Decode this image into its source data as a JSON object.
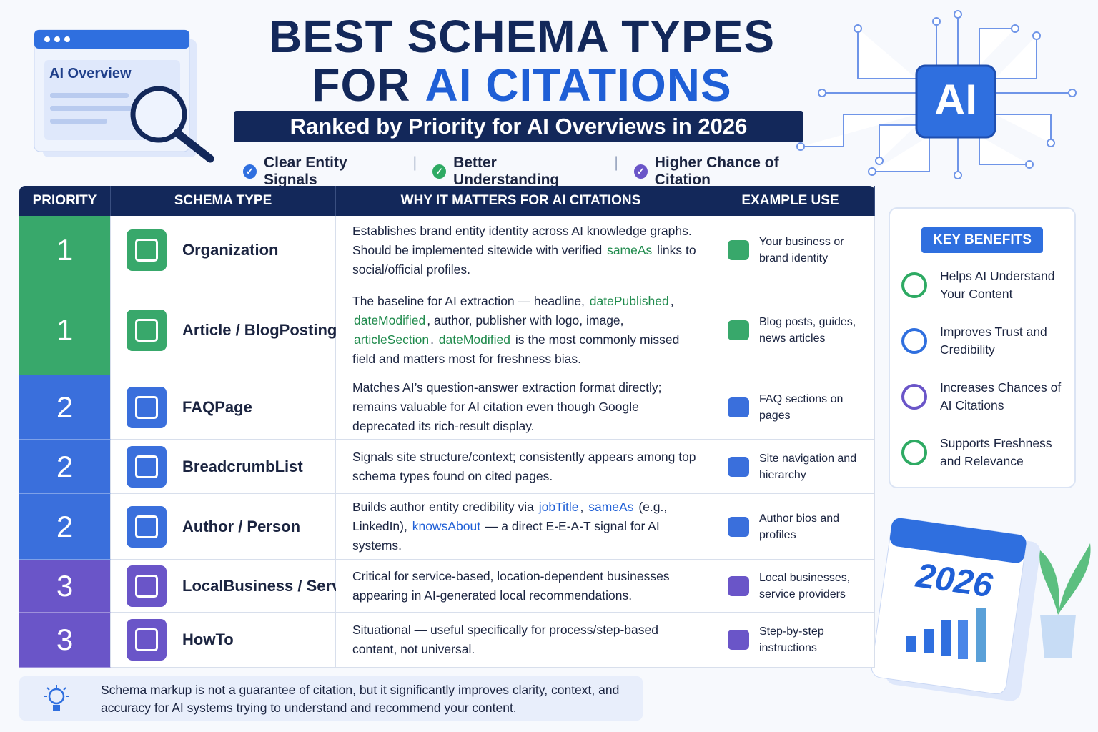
{
  "header": {
    "title_line1": "BEST SCHEMA TYPES",
    "title_line2_a": "FOR",
    "title_line2_b": "AI CITATIONS",
    "subtitle": "Ranked by Priority for AI Overviews in 2026",
    "checks": [
      {
        "text": "Clear Entity Signals",
        "color": "#2f6fdf"
      },
      {
        "text": "Better Understanding",
        "color": "#2eaa63"
      },
      {
        "text": "Higher Chance of Citation",
        "color": "#6a55c8"
      }
    ]
  },
  "decor": {
    "browser_label": "AI Overview",
    "chip_label": "AI",
    "calendar_year": "2026"
  },
  "table": {
    "headers": [
      "PRIORITY",
      "SCHEMA TYPE",
      "WHY IT MATTERS FOR AI CITATIONS",
      "EXAMPLE USE"
    ],
    "rows": [
      {
        "priority": 1,
        "color": "#38a86b",
        "schema": "Organization",
        "why": [
          {
            "text": "Establishes brand entity identity across AI knowledge graphs. Should be implemented sitewide with verified "
          },
          {
            "text": "sameAs",
            "color": "#1f8a4c"
          },
          {
            "text": " links to social/official profiles."
          }
        ],
        "example": "Your business or brand identity"
      },
      {
        "priority": 1,
        "color": "#38a86b",
        "schema": "Article / BlogPosting",
        "why": [
          {
            "text": "The baseline for AI extraction — headline, "
          },
          {
            "text": "datePublished",
            "color": "#1f8a4c"
          },
          {
            "text": ", "
          },
          {
            "text": "dateModified",
            "color": "#1f8a4c"
          },
          {
            "text": ", author, publisher with logo, image, "
          },
          {
            "text": "articleSection",
            "color": "#1f8a4c"
          },
          {
            "text": ". "
          },
          {
            "text": "dateModified",
            "color": "#1f8a4c"
          },
          {
            "text": " is the most commonly missed field and matters most for freshness bias."
          }
        ],
        "example": "Blog posts, guides, news articles"
      },
      {
        "priority": 2,
        "color": "#3a6fdc",
        "schema": "FAQPage",
        "why": [
          {
            "text": "Matches AI’s question-answer extraction format directly; remains valuable for AI citation even though Google deprecated its rich-result display."
          }
        ],
        "example": "FAQ sections on pages"
      },
      {
        "priority": 2,
        "color": "#3a6fdc",
        "schema": "BreadcrumbList",
        "why": [
          {
            "text": "Signals site structure/context; consistently appears among top schema types found on cited pages."
          }
        ],
        "example": "Site navigation and hierarchy"
      },
      {
        "priority": 2,
        "color": "#3a6fdc",
        "schema": "Author / Person",
        "why": [
          {
            "text": "Builds author entity credibility via "
          },
          {
            "text": "jobTitle",
            "color": "#1f5fd6"
          },
          {
            "text": ", "
          },
          {
            "text": "sameAs",
            "color": "#1f5fd6"
          },
          {
            "text": " (e.g., LinkedIn), "
          },
          {
            "text": "knowsAbout",
            "color": "#1f5fd6"
          },
          {
            "text": " — a direct E-E-A-T signal for AI systems."
          }
        ],
        "example": "Author bios and profiles"
      },
      {
        "priority": 3,
        "color": "#6a55c8",
        "schema": "LocalBusiness / Service",
        "why": [
          {
            "text": "Critical for service-based, location-dependent businesses appearing in AI-generated local recommendations."
          }
        ],
        "example": "Local businesses, service providers"
      },
      {
        "priority": 3,
        "color": "#6a55c8",
        "schema": "HowTo",
        "why": [
          {
            "text": "Situational — useful specifically for process/step-based content, not universal."
          }
        ],
        "example": "Step-by-step instructions"
      }
    ]
  },
  "benefits": {
    "title": "KEY BENEFITS",
    "items": [
      "Helps AI Understand Your Content",
      "Improves Trust and Credibility",
      "Increases Chances of AI Citations",
      "Supports Freshness and Relevance"
    ]
  },
  "footer": {
    "note": "Schema markup is not a guarantee of citation, but it significantly improves clarity, context, and accuracy for AI systems trying to understand and recommend your content."
  }
}
